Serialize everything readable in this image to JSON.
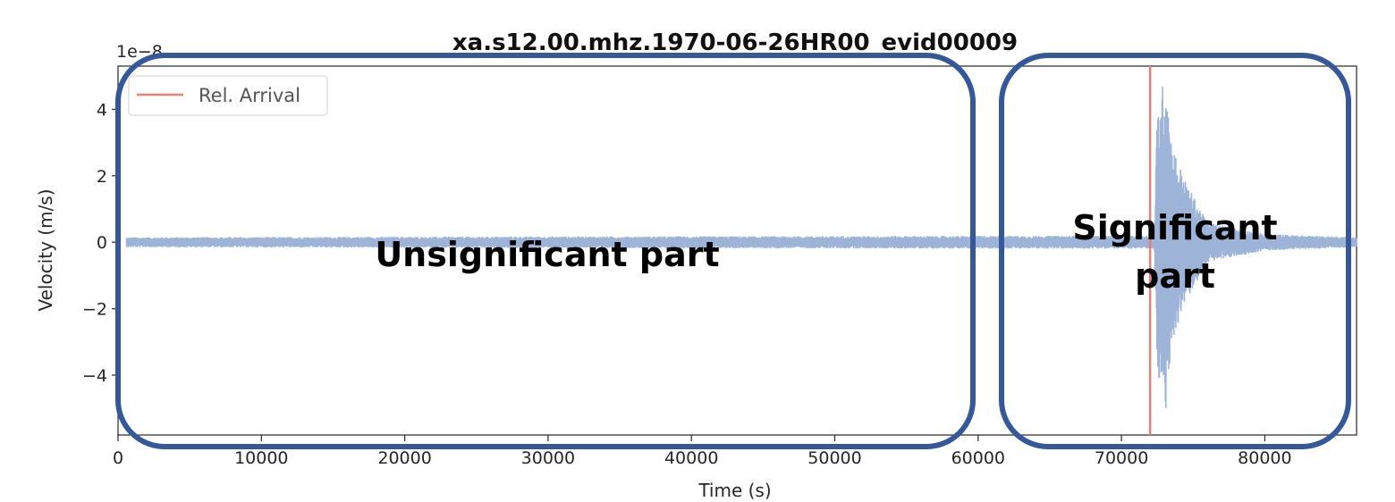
{
  "chart_data": {
    "type": "line",
    "title": "xa.s12.00.mhz.1970-06-26HR00_evid00009",
    "xlabel": "Time (s)",
    "ylabel": "Velocity (m/s)",
    "y_offset_label": "1e−8",
    "xlim": [
      0,
      86400
    ],
    "ylim": [
      -5.8,
      5.3
    ],
    "y_scale_factor": 1e-08,
    "x_ticks": [
      0,
      10000,
      20000,
      30000,
      40000,
      50000,
      60000,
      70000,
      80000
    ],
    "x_tick_labels": [
      "0",
      "10000",
      "20000",
      "30000",
      "40000",
      "50000",
      "60000",
      "70000",
      "80000"
    ],
    "y_ticks": [
      -4,
      -2,
      0,
      2,
      4
    ],
    "y_tick_labels": [
      "−4",
      "−2",
      "0",
      "2",
      "4"
    ],
    "grid": false,
    "legend_placement": "upper-left",
    "series": [
      {
        "name": "Rel. Arrival",
        "kind": "vertical_line",
        "x": 72000,
        "color": "#e8807a"
      },
      {
        "kind": "waveform",
        "color": "#9db4d8",
        "baseline_amplitude": 0.15,
        "envelope": [
          {
            "x": 0,
            "amp": 0.15
          },
          {
            "x": 72300,
            "amp": 0.2
          },
          {
            "x": 72500,
            "amp": 4.1
          },
          {
            "x": 72900,
            "amp": 4.8
          },
          {
            "x": 73100,
            "amp": -5.3
          },
          {
            "x": 73500,
            "amp": 3.0
          },
          {
            "x": 74500,
            "amp": 1.8
          },
          {
            "x": 76000,
            "amp": 0.6
          },
          {
            "x": 80000,
            "amp": 0.25
          },
          {
            "x": 86400,
            "amp": 0.15
          }
        ]
      }
    ]
  },
  "annotations": {
    "left_region_label": "Unsignificant part",
    "right_region_label_line1": "Significant",
    "right_region_label_line2": "part",
    "box_color": "#34589a"
  }
}
